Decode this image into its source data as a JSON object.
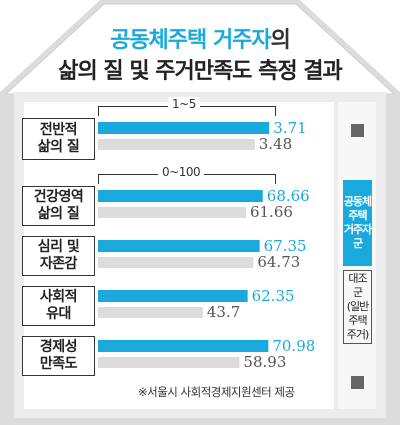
{
  "title": {
    "line1_highlight": "공동체주택 거주자",
    "line1_rest": "의",
    "line2": "삶의 질 및 주거만족도 측정 결과"
  },
  "scales": [
    {
      "label": "1~5"
    },
    {
      "label": "0~100"
    }
  ],
  "legend": {
    "blue": "공동체\n주택\n거주자\n군",
    "gray": "대조군\n(일반\n주택\n주거)"
  },
  "source": "※서울시 사회적경제지원센터 제공",
  "colors": {
    "blue": "#19a9dd",
    "gray": "#dcdcdc",
    "background": "#ececec"
  },
  "chart_data": [
    {
      "type": "bar",
      "scale_label": "1~5",
      "xlim": [
        1,
        5
      ],
      "categories": [
        "전반적\n삶의 질"
      ],
      "series": [
        {
          "name": "공동체주택 거주자군",
          "values": [
            3.71
          ],
          "labels": [
            "3.71"
          ]
        },
        {
          "name": "대조군(일반주택 주거)",
          "values": [
            3.48
          ],
          "labels": [
            "3.48"
          ]
        }
      ]
    },
    {
      "type": "bar",
      "scale_label": "0~100",
      "xlim": [
        0,
        100
      ],
      "categories": [
        "건강영역\n삶의 질",
        "심리 및\n자존감",
        "사회적\n유대",
        "경제성\n만족도"
      ],
      "series": [
        {
          "name": "공동체주택 거주자군",
          "values": [
            68.66,
            67.35,
            62.35,
            70.98
          ],
          "labels": [
            "68.66",
            "67.35",
            "62.35",
            "70.98"
          ]
        },
        {
          "name": "대조군(일반주택 주거)",
          "values": [
            61.66,
            64.73,
            43.7,
            58.93
          ],
          "labels": [
            "61.66",
            "64.73",
            "43.7",
            "58.93"
          ]
        }
      ]
    }
  ]
}
